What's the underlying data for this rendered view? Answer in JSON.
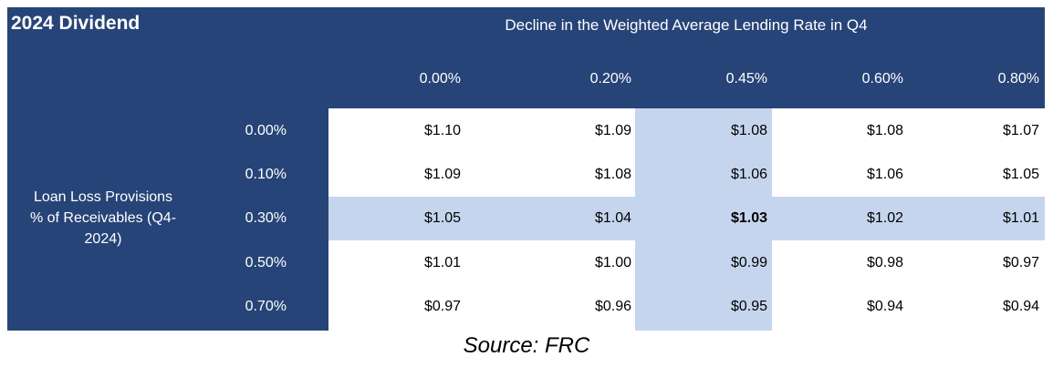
{
  "title": "2024 Dividend",
  "column_header": "Decline in the Weighted Average Lending Rate in Q4",
  "row_header": "Loan Loss Provisions % of Receivables (Q4-2024)",
  "row_header_lines": [
    "Loan Loss Provisions",
    "% of Receivables (Q4-",
    "2024)"
  ],
  "columns": [
    "0.00%",
    "0.20%",
    "0.45%",
    "0.60%",
    "0.80%"
  ],
  "rows": [
    {
      "label": "0.00%",
      "values": [
        "$1.10",
        "$1.09",
        "$1.08",
        "$1.08",
        "$1.07"
      ]
    },
    {
      "label": "0.10%",
      "values": [
        "$1.09",
        "$1.08",
        "$1.06",
        "$1.06",
        "$1.05"
      ]
    },
    {
      "label": "0.30%",
      "values": [
        "$1.05",
        "$1.04",
        "$1.03",
        "$1.02",
        "$1.01"
      ]
    },
    {
      "label": "0.50%",
      "values": [
        "$1.01",
        "$1.00",
        "$0.99",
        "$0.98",
        "$0.97"
      ]
    },
    {
      "label": "0.70%",
      "values": [
        "$0.97",
        "$0.96",
        "$0.95",
        "$0.94",
        "$0.94"
      ]
    }
  ],
  "highlight": {
    "row_index": 2,
    "column_index": 2
  },
  "source": "Source: FRC",
  "colors": {
    "header_navy": "#264477",
    "highlight_blue": "#c6d5ee"
  }
}
